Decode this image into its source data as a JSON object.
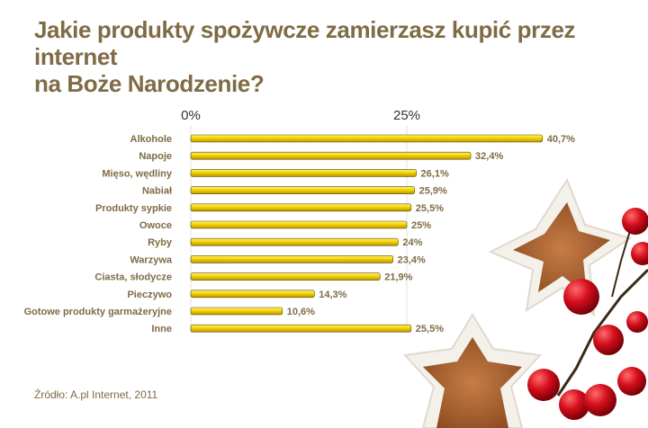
{
  "title_line1": "Jakie produkty spożywcze zamierzasz kupić przez internet",
  "title_line2": "na Boże Narodzenie?",
  "source": "Źródło: A.pl Internet, 2011",
  "colors": {
    "bar": "#f2d000",
    "bar_edge": "#5a4a00",
    "text": "#7f6b45"
  },
  "chart_data": {
    "type": "bar",
    "orientation": "horizontal",
    "title": "Jakie produkty spożywcze zamierzasz kupić przez internet na Boże Narodzenie?",
    "xlabel": "",
    "ylabel": "",
    "xlim": [
      0,
      45
    ],
    "tick_labels": [
      "0%",
      "25%"
    ],
    "tick_values": [
      0,
      25
    ],
    "grid": true,
    "categories": [
      "Alkohole",
      "Napoje",
      "Mięso, wędliny",
      "Nabiał",
      "Produkty sypkie",
      "Owoce",
      "Ryby",
      "Warzywa",
      "Ciasta, słodycze",
      "Pieczywo",
      "Gotowe produkty garmażeryjne",
      "Inne"
    ],
    "values": [
      40.7,
      32.4,
      26.1,
      25.9,
      25.5,
      25,
      24,
      23.4,
      21.9,
      14.3,
      10.6,
      25.5
    ],
    "value_labels": [
      "40,7%",
      "32,4%",
      "26,1%",
      "25,9%",
      "25,5%",
      "25%",
      "24%",
      "23,4%",
      "21,9%",
      "14,3%",
      "10,6%",
      "25,5%"
    ]
  }
}
